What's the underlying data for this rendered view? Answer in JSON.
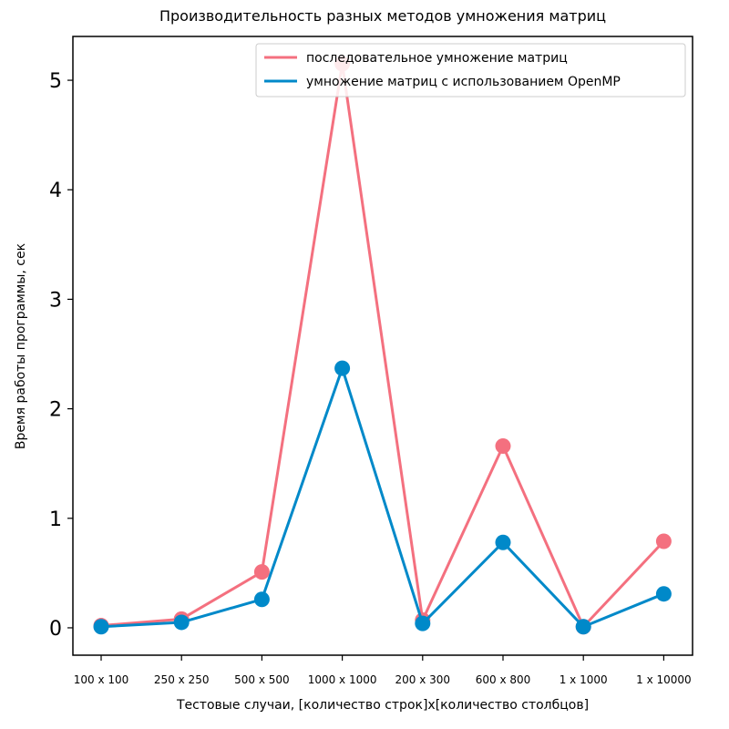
{
  "chart_data": {
    "type": "line",
    "title": "Производительность разных методов умножения матриц",
    "xlabel": "Тестовые случаи, [количество строк]x[количество столбцов]",
    "ylabel": "Время работы программы, сек",
    "categories": [
      "100 x 100",
      "250 x 250",
      "500 x 500",
      "1000 x 1000",
      "200 x 300",
      "600 x 800",
      "1 x 1000",
      "1 x 10000"
    ],
    "ylim": [
      -0.25,
      5.4
    ],
    "yticks": [
      0,
      1,
      2,
      3,
      4,
      5
    ],
    "grid": false,
    "legend_position": "top-right",
    "series": [
      {
        "name": "последовательное умножение матриц",
        "color": "#f4707f",
        "values": [
          0.02,
          0.08,
          0.51,
          5.15,
          0.07,
          1.66,
          0.01,
          0.79
        ]
      },
      {
        "name": "умножение матриц с использованием OpenMP",
        "color": "#0089c9",
        "values": [
          0.01,
          0.05,
          0.26,
          2.37,
          0.04,
          0.78,
          0.01,
          0.31
        ]
      }
    ]
  }
}
